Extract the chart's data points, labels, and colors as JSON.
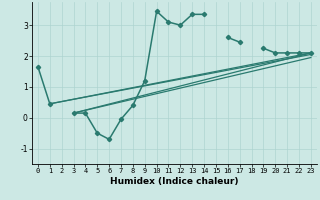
{
  "xlabel": "Humidex (Indice chaleur)",
  "bg_color": "#cce8e4",
  "line_color": "#2a7a6f",
  "xlim": [
    -0.5,
    23.5
  ],
  "ylim": [
    -1.5,
    3.75
  ],
  "xticks": [
    0,
    1,
    2,
    3,
    4,
    5,
    6,
    7,
    8,
    9,
    10,
    11,
    12,
    13,
    14,
    15,
    16,
    17,
    18,
    19,
    20,
    21,
    22,
    23
  ],
  "yticks": [
    -1,
    0,
    1,
    2,
    3
  ],
  "grid_color": "#aed4d0",
  "grid_lw": 0.5,
  "segments": [
    {
      "x": [
        0,
        1
      ],
      "y": [
        1.65,
        0.45
      ]
    },
    {
      "x": [
        3,
        4,
        5,
        6,
        7,
        8,
        9,
        10,
        11,
        12,
        13,
        14
      ],
      "y": [
        0.15,
        0.15,
        -0.5,
        -0.7,
        -0.05,
        0.4,
        1.2,
        3.45,
        3.1,
        3.0,
        3.35,
        3.35
      ]
    },
    {
      "x": [
        16,
        17
      ],
      "y": [
        2.6,
        2.45
      ]
    },
    {
      "x": [
        19,
        20,
        21,
        22,
        23
      ],
      "y": [
        2.25,
        2.1,
        2.1,
        2.1,
        2.1
      ]
    }
  ],
  "ref_lines": [
    {
      "x": [
        1,
        23
      ],
      "y": [
        0.45,
        2.1
      ]
    },
    {
      "x": [
        1,
        23
      ],
      "y": [
        0.45,
        2.05
      ]
    },
    {
      "x": [
        3,
        23
      ],
      "y": [
        0.15,
        2.1
      ]
    },
    {
      "x": [
        3,
        23
      ],
      "y": [
        0.15,
        1.95
      ]
    }
  ]
}
